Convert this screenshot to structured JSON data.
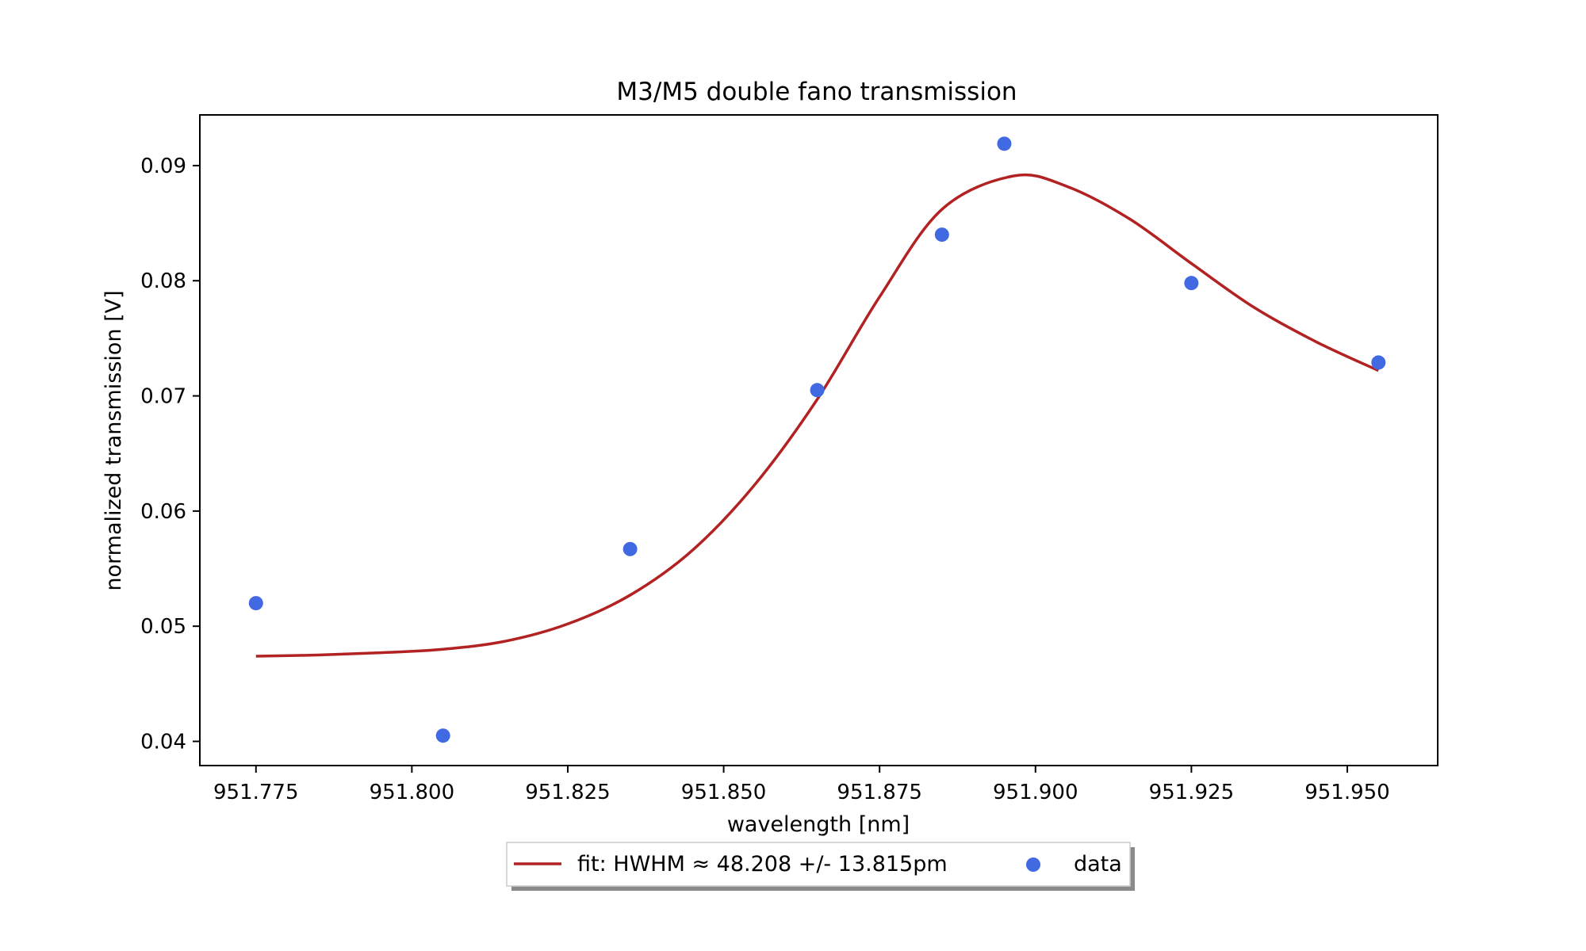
{
  "chart_data": {
    "type": "scatter",
    "title": "M3/M5 double fano transmission",
    "xlabel": "wavelength [nm]",
    "ylabel": "normalized transmission [V]",
    "xlim": [
      951.766,
      951.9645
    ],
    "ylim": [
      0.0379,
      0.0944
    ],
    "xticks": [
      951.775,
      951.8,
      951.825,
      951.85,
      951.875,
      951.9,
      951.925,
      951.95
    ],
    "xtick_labels": [
      "951.775",
      "951.800",
      "951.825",
      "951.850",
      "951.875",
      "951.900",
      "951.925",
      "951.950"
    ],
    "yticks": [
      0.04,
      0.05,
      0.06,
      0.07,
      0.08,
      0.09
    ],
    "ytick_labels": [
      "0.04",
      "0.05",
      "0.06",
      "0.07",
      "0.08",
      "0.09"
    ],
    "grid": false,
    "legend_position": "bottom-center, below axes",
    "series": [
      {
        "name": "data",
        "kind": "scatter",
        "color": "#4169e1",
        "x": [
          951.775,
          951.805,
          951.835,
          951.865,
          951.885,
          951.895,
          951.925,
          951.955
        ],
        "y": [
          0.052,
          0.0405,
          0.0567,
          0.0705,
          0.084,
          0.0919,
          0.0798,
          0.0729
        ]
      },
      {
        "name": "fit: HWHM ≈ 48.208 +/- 13.815pm",
        "kind": "line",
        "color": "#b22222",
        "x": [
          951.775,
          951.785,
          951.795,
          951.805,
          951.815,
          951.825,
          951.835,
          951.845,
          951.855,
          951.865,
          951.875,
          951.885,
          951.8965,
          951.905,
          951.915,
          951.925,
          951.935,
          951.945,
          951.955
        ],
        "y": [
          0.0474,
          0.0475,
          0.0477,
          0.048,
          0.0487,
          0.0502,
          0.0527,
          0.0566,
          0.0623,
          0.0697,
          0.0786,
          0.0862,
          0.0891,
          0.0882,
          0.0854,
          0.0815,
          0.0777,
          0.0747,
          0.0722
        ]
      }
    ]
  }
}
